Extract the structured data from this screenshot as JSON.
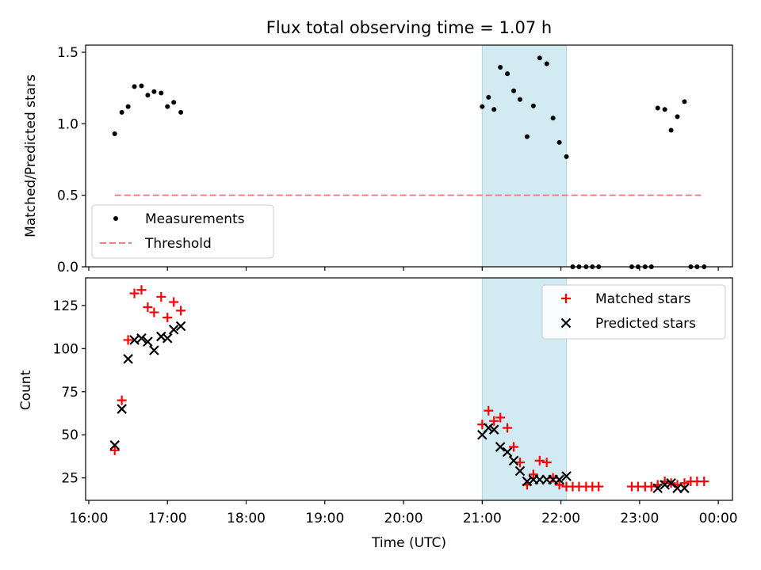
{
  "title": "Flux total observing time = 1.07 h",
  "chart_data": [
    {
      "type": "scatter",
      "ylabel": "Matched/Predicted stars",
      "ylim": [
        0,
        1.55
      ],
      "xlim": [
        15.96,
        24.18
      ],
      "yticks": [
        0.0,
        0.5,
        1.0,
        1.5
      ],
      "ytick_labels": [
        "0.0",
        "0.5",
        "1.0",
        "1.5"
      ],
      "shaded_span": [
        21.0,
        22.07
      ],
      "shade_color": "#add8e6",
      "threshold": {
        "value": 0.5,
        "x_range": [
          16.33,
          23.78
        ],
        "color": "#f08080"
      },
      "legend": {
        "position": "lower-left",
        "entries": [
          {
            "label": "Measurements",
            "marker": "dot",
            "color": "#000000"
          },
          {
            "label": "Threshold",
            "marker": "dashed-line",
            "color": "#f08080"
          }
        ]
      },
      "series": [
        {
          "name": "Measurements",
          "color": "#000000",
          "x": [
            16.33,
            16.42,
            16.5,
            16.58,
            16.67,
            16.75,
            16.83,
            16.92,
            17.0,
            17.08,
            17.17,
            21.0,
            21.08,
            21.15,
            21.23,
            21.32,
            21.4,
            21.48,
            21.57,
            21.65,
            21.73,
            21.82,
            21.9,
            21.98,
            22.07,
            22.15,
            22.23,
            22.32,
            22.4,
            22.48,
            22.9,
            22.98,
            23.07,
            23.15,
            23.23,
            23.32,
            23.4,
            23.48,
            23.57,
            23.65,
            23.73,
            23.82
          ],
          "y": [
            0.93,
            1.08,
            1.12,
            1.26,
            1.265,
            1.2,
            1.225,
            1.215,
            1.12,
            1.15,
            1.08,
            1.12,
            1.185,
            1.1,
            1.395,
            1.35,
            1.23,
            1.17,
            0.91,
            1.125,
            1.46,
            1.42,
            1.04,
            0.87,
            0.77,
            0,
            0,
            0,
            0,
            0,
            0,
            0,
            0,
            0,
            1.11,
            1.1,
            0.955,
            1.05,
            1.155,
            0,
            0,
            0
          ]
        }
      ]
    },
    {
      "type": "scatter",
      "ylabel": "Count",
      "xlabel": "Time (UTC)",
      "ylim": [
        12,
        141
      ],
      "xlim": [
        15.96,
        24.18
      ],
      "yticks": [
        25,
        50,
        75,
        100,
        125
      ],
      "ytick_labels": [
        "25",
        "50",
        "75",
        "100",
        "125"
      ],
      "xticks": [
        16,
        17,
        18,
        19,
        20,
        21,
        22,
        23,
        24
      ],
      "xtick_labels": [
        "16:00",
        "17:00",
        "18:00",
        "19:00",
        "20:00",
        "21:00",
        "22:00",
        "23:00",
        "00:00"
      ],
      "shaded_span": [
        21.0,
        22.07
      ],
      "shade_color": "#add8e6",
      "legend": {
        "position": "upper-right",
        "entries": [
          {
            "label": "Matched stars",
            "marker": "plus",
            "color": "#ff0000"
          },
          {
            "label": "Predicted stars",
            "marker": "x",
            "color": "#000000"
          }
        ]
      },
      "series": [
        {
          "name": "Matched stars",
          "marker": "plus",
          "color": "#ff0000",
          "x": [
            16.33,
            16.42,
            16.5,
            16.58,
            16.67,
            16.75,
            16.83,
            16.92,
            17.0,
            17.08,
            17.17,
            21.0,
            21.08,
            21.15,
            21.23,
            21.32,
            21.4,
            21.48,
            21.57,
            21.65,
            21.73,
            21.82,
            21.9,
            21.98,
            22.07,
            22.15,
            22.23,
            22.32,
            22.4,
            22.48,
            22.9,
            22.98,
            23.07,
            23.15,
            23.23,
            23.32,
            23.4,
            23.48,
            23.57,
            23.65,
            23.73,
            23.82
          ],
          "y": [
            41,
            70,
            105,
            132,
            134,
            124,
            121,
            130,
            118,
            127,
            122,
            56,
            64,
            58,
            60,
            54,
            43,
            34,
            21,
            27,
            35,
            34,
            25,
            21,
            20,
            20,
            20,
            20,
            20,
            20,
            20,
            20,
            20,
            20,
            21,
            23,
            22,
            21,
            22,
            23,
            23,
            23
          ]
        },
        {
          "name": "Predicted stars",
          "marker": "x",
          "color": "#000000",
          "x": [
            16.33,
            16.42,
            16.5,
            16.58,
            16.67,
            16.75,
            16.83,
            16.92,
            17.0,
            17.08,
            17.17,
            21.0,
            21.08,
            21.15,
            21.23,
            21.32,
            21.4,
            21.48,
            21.57,
            21.65,
            21.73,
            21.82,
            21.9,
            21.98,
            22.07,
            23.23,
            23.32,
            23.4,
            23.48,
            23.57
          ],
          "y": [
            44,
            65,
            94,
            105,
            106,
            104,
            99,
            107,
            106,
            111,
            113,
            50,
            54,
            53,
            43,
            40,
            35,
            29,
            23,
            24,
            24,
            24,
            24,
            24,
            26,
            19,
            21,
            22,
            19,
            19
          ]
        }
      ]
    }
  ]
}
